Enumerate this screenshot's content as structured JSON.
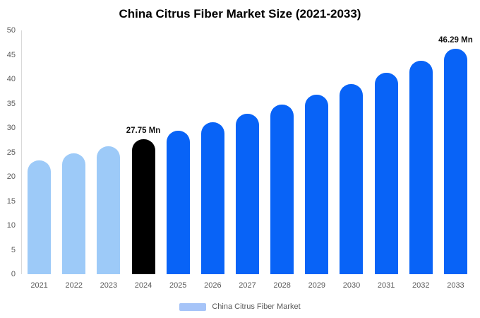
{
  "title": "China Citrus Fiber Market Size (2021-2033)",
  "legend": {
    "label": "China Citrus Fiber Market",
    "swatch_color": "#a6c4f8"
  },
  "colors": {
    "historical": "#9dcaf8",
    "highlight": "#000000",
    "forecast": "#0863f7"
  },
  "chart_data": {
    "type": "bar",
    "title": "China Citrus Fiber Market Size (2021-2033)",
    "unit": "Mn",
    "categories": [
      "2021",
      "2022",
      "2023",
      "2024",
      "2025",
      "2026",
      "2027",
      "2028",
      "2029",
      "2030",
      "2031",
      "2032",
      "2033"
    ],
    "values": [
      23.4,
      24.78,
      26.22,
      27.75,
      29.37,
      31.09,
      32.91,
      34.84,
      36.88,
      39.04,
      41.32,
      43.74,
      46.29
    ],
    "bar_colors": [
      "#9dcaf8",
      "#9dcaf8",
      "#9dcaf8",
      "#000000",
      "#0863f7",
      "#0863f7",
      "#0863f7",
      "#0863f7",
      "#0863f7",
      "#0863f7",
      "#0863f7",
      "#0863f7",
      "#0863f7"
    ],
    "point_labels": [
      "",
      "",
      "",
      "27.75 Mn",
      "",
      "",
      "",
      "",
      "",
      "",
      "",
      "",
      "46.29 Mn"
    ],
    "xlabel": "",
    "ylabel": "",
    "ylim": [
      0,
      50
    ],
    "yticks": [
      0,
      5,
      10,
      15,
      20,
      25,
      30,
      35,
      40,
      45,
      50
    ],
    "grid": false,
    "legend_entries": [
      "China Citrus Fiber Market"
    ],
    "legend_position": "bottom"
  }
}
